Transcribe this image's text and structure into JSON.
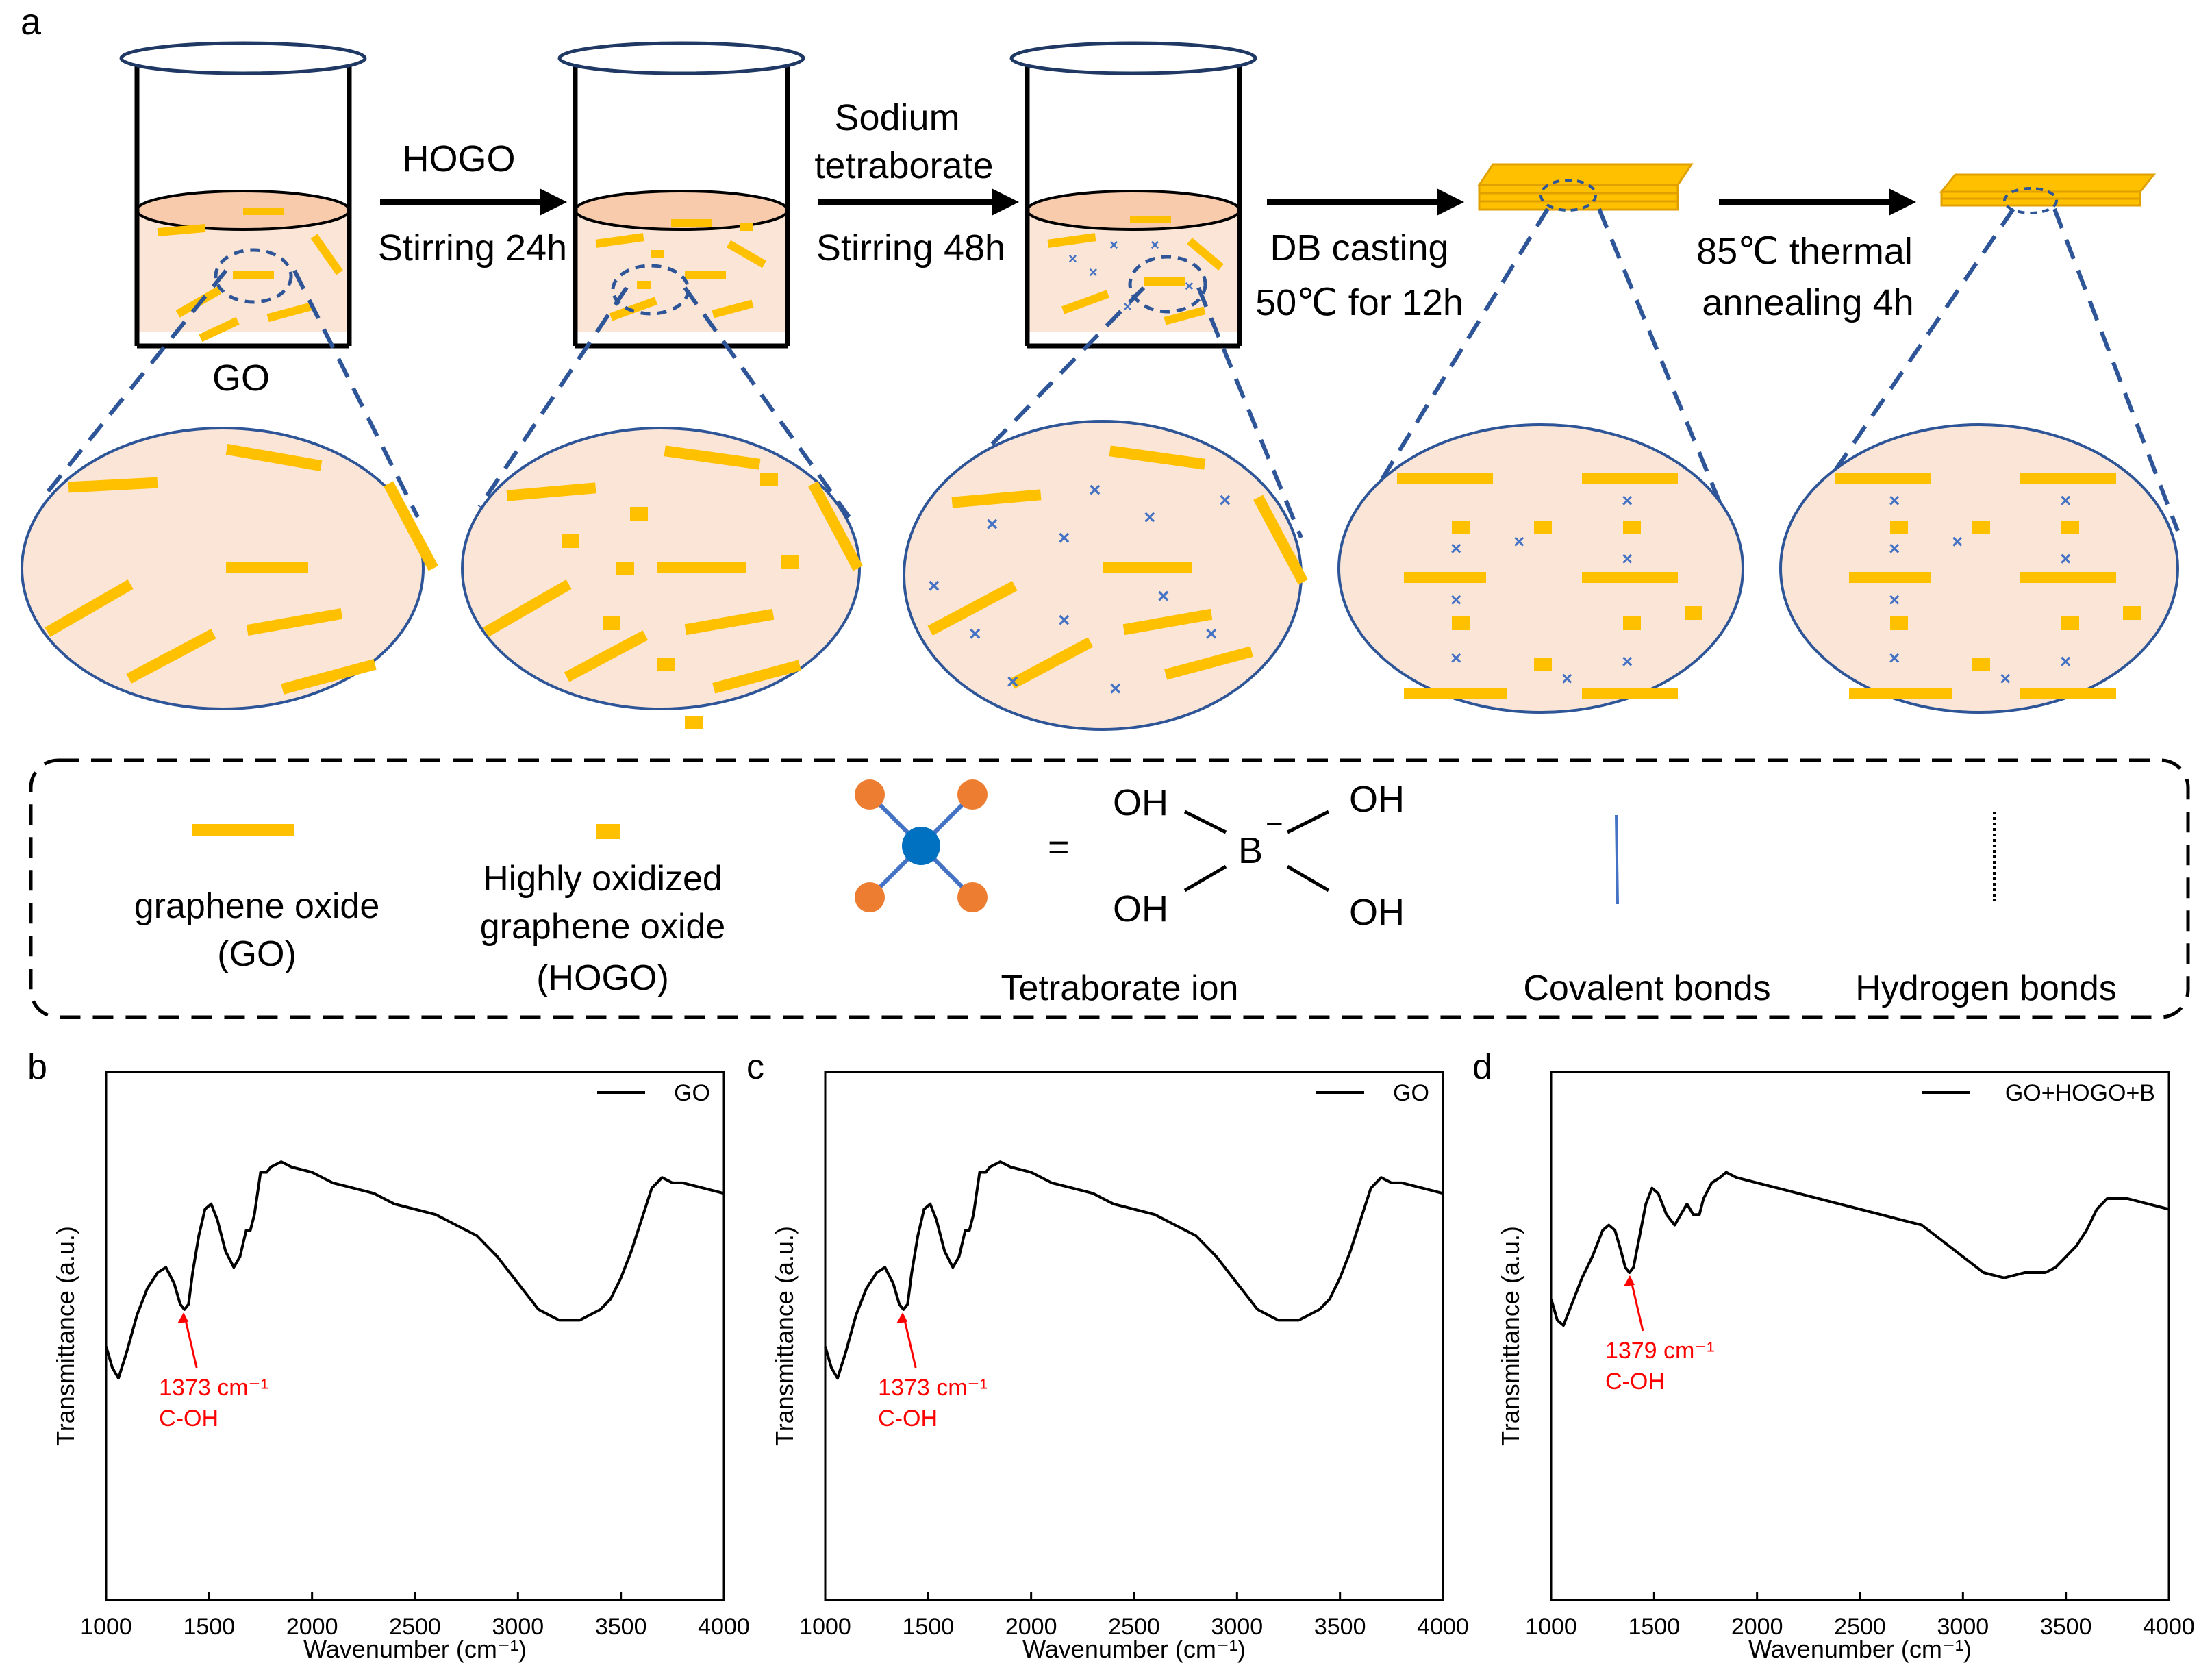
{
  "panel_a": {
    "label": "a",
    "step1": {
      "line1": "HOGO",
      "line2": "Stirring 24h"
    },
    "step2": {
      "line1": "Sodium",
      "line2": "tetraborate",
      "line3": "Stirring 48h"
    },
    "step3": {
      "line1": "DB casting",
      "line2": "50℃ for 12h"
    },
    "step4": {
      "line1": "85℃ thermal",
      "line2": "annealing 4h"
    },
    "beaker1_label": "GO",
    "legend": {
      "go_line1": "graphene oxide",
      "go_line2": "(GO)",
      "hogo_line1": "Highly oxidized",
      "hogo_line2": "graphene oxide",
      "hogo_line3": "(HOGO)",
      "equals": "=",
      "oh": "OH",
      "boron": "B",
      "charge": "−",
      "tetraborate": "Tetraborate ion",
      "covalent": "Covalent bonds",
      "hydrogen": "Hydrogen bonds"
    },
    "colors": {
      "sheet": "#ffc000",
      "dot": "#e03020",
      "fill": "#fbe5d6",
      "liquid_top": "#f8cbad",
      "ring": "#2e5597",
      "cross": "#4472c4",
      "ball": "#ed7d31",
      "center": "#0070c0"
    }
  },
  "chart_data": [
    {
      "panel": "b",
      "type": "line",
      "xlabel": "Wavenumber (cm⁻¹)",
      "ylabel": "Transmittance (a.u.)",
      "xlim": [
        1000,
        4000
      ],
      "ylim": [
        0,
        100
      ],
      "xticks": [
        "1000",
        "1500",
        "2000",
        "2500",
        "3000",
        "3500",
        "4000"
      ],
      "legend": "GO",
      "annotation": {
        "value": "1373 cm⁻¹",
        "label": "C-OH",
        "x": 1373,
        "y": 55
      },
      "color": "#000000",
      "x": [
        1000,
        1030,
        1060,
        1100,
        1150,
        1200,
        1250,
        1290,
        1330,
        1360,
        1380,
        1400,
        1420,
        1450,
        1480,
        1510,
        1540,
        1580,
        1620,
        1650,
        1680,
        1700,
        1720,
        1750,
        1780,
        1800,
        1850,
        1900,
        2000,
        2100,
        2200,
        2300,
        2400,
        2500,
        2600,
        2700,
        2800,
        2900,
        3000,
        3100,
        3150,
        3200,
        3250,
        3300,
        3400,
        3450,
        3500,
        3550,
        3600,
        3650,
        3700,
        3750,
        3800,
        3900,
        4000
      ],
      "y": [
        48,
        44,
        42,
        47,
        54,
        59,
        62,
        63,
        60,
        56,
        55,
        56,
        62,
        69,
        74,
        75,
        72,
        66,
        63,
        65,
        70,
        70,
        73,
        81,
        81,
        82,
        83,
        82,
        81,
        79,
        78,
        77,
        75,
        74,
        73,
        71,
        69,
        65,
        60,
        55,
        54,
        53,
        53,
        53,
        55,
        57,
        61,
        66,
        72,
        78,
        80,
        79,
        79,
        78,
        77
      ]
    },
    {
      "panel": "c",
      "type": "line",
      "xlabel": "Wavenumber (cm⁻¹)",
      "ylabel": "Transmittance (a.u.)",
      "xlim": [
        1000,
        4000
      ],
      "ylim": [
        0,
        100
      ],
      "xticks": [
        "1000",
        "1500",
        "2000",
        "2500",
        "3000",
        "3500",
        "4000"
      ],
      "legend": "GO",
      "annotation": {
        "value": "1373 cm⁻¹",
        "label": "C-OH",
        "x": 1373,
        "y": 55
      },
      "color": "#000000",
      "x": [
        1000,
        1030,
        1060,
        1100,
        1150,
        1200,
        1250,
        1290,
        1330,
        1360,
        1380,
        1400,
        1420,
        1450,
        1480,
        1510,
        1540,
        1580,
        1620,
        1650,
        1680,
        1700,
        1720,
        1750,
        1780,
        1800,
        1850,
        1900,
        2000,
        2100,
        2200,
        2300,
        2400,
        2500,
        2600,
        2700,
        2800,
        2900,
        3000,
        3100,
        3150,
        3200,
        3250,
        3300,
        3400,
        3450,
        3500,
        3550,
        3600,
        3650,
        3700,
        3750,
        3800,
        3900,
        4000
      ],
      "y": [
        48,
        44,
        42,
        47,
        54,
        59,
        62,
        63,
        60,
        56,
        55,
        56,
        62,
        69,
        74,
        75,
        72,
        66,
        63,
        65,
        70,
        70,
        73,
        81,
        81,
        82,
        83,
        82,
        81,
        79,
        78,
        77,
        75,
        74,
        73,
        71,
        69,
        65,
        60,
        55,
        54,
        53,
        53,
        53,
        55,
        57,
        61,
        66,
        72,
        78,
        80,
        79,
        79,
        78,
        77
      ]
    },
    {
      "panel": "d",
      "type": "line",
      "xlabel": "Wavenumber (cm⁻¹)",
      "ylabel": "Transmittance (a.u.)",
      "xlim": [
        1000,
        4000
      ],
      "ylim": [
        0,
        100
      ],
      "xticks": [
        "1000",
        "1500",
        "2000",
        "2500",
        "3000",
        "3500",
        "4000"
      ],
      "legend": "GO+HOGO+B",
      "annotation": {
        "value": "1379 cm⁻¹",
        "label": "C-OH",
        "x": 1379,
        "y": 62
      },
      "color": "#000000",
      "x": [
        1000,
        1030,
        1060,
        1100,
        1150,
        1200,
        1250,
        1280,
        1310,
        1340,
        1360,
        1380,
        1400,
        1430,
        1460,
        1490,
        1520,
        1560,
        1600,
        1630,
        1660,
        1690,
        1720,
        1740,
        1780,
        1820,
        1850,
        1900,
        2000,
        2100,
        2200,
        2300,
        2400,
        2500,
        2600,
        2700,
        2800,
        2900,
        3000,
        3100,
        3200,
        3300,
        3400,
        3450,
        3500,
        3550,
        3600,
        3650,
        3700,
        3750,
        3800,
        3900,
        4000
      ],
      "y": [
        57,
        53,
        52,
        56,
        61,
        65,
        70,
        71,
        70,
        66,
        63,
        62,
        63,
        69,
        75,
        78,
        77,
        73,
        71,
        73,
        75,
        73,
        73,
        76,
        79,
        80,
        81,
        80,
        79,
        78,
        77,
        76,
        75,
        74,
        73,
        72,
        71,
        68,
        65,
        62,
        61,
        62,
        62,
        63,
        65,
        67,
        70,
        74,
        76,
        76,
        76,
        75,
        74
      ]
    }
  ]
}
